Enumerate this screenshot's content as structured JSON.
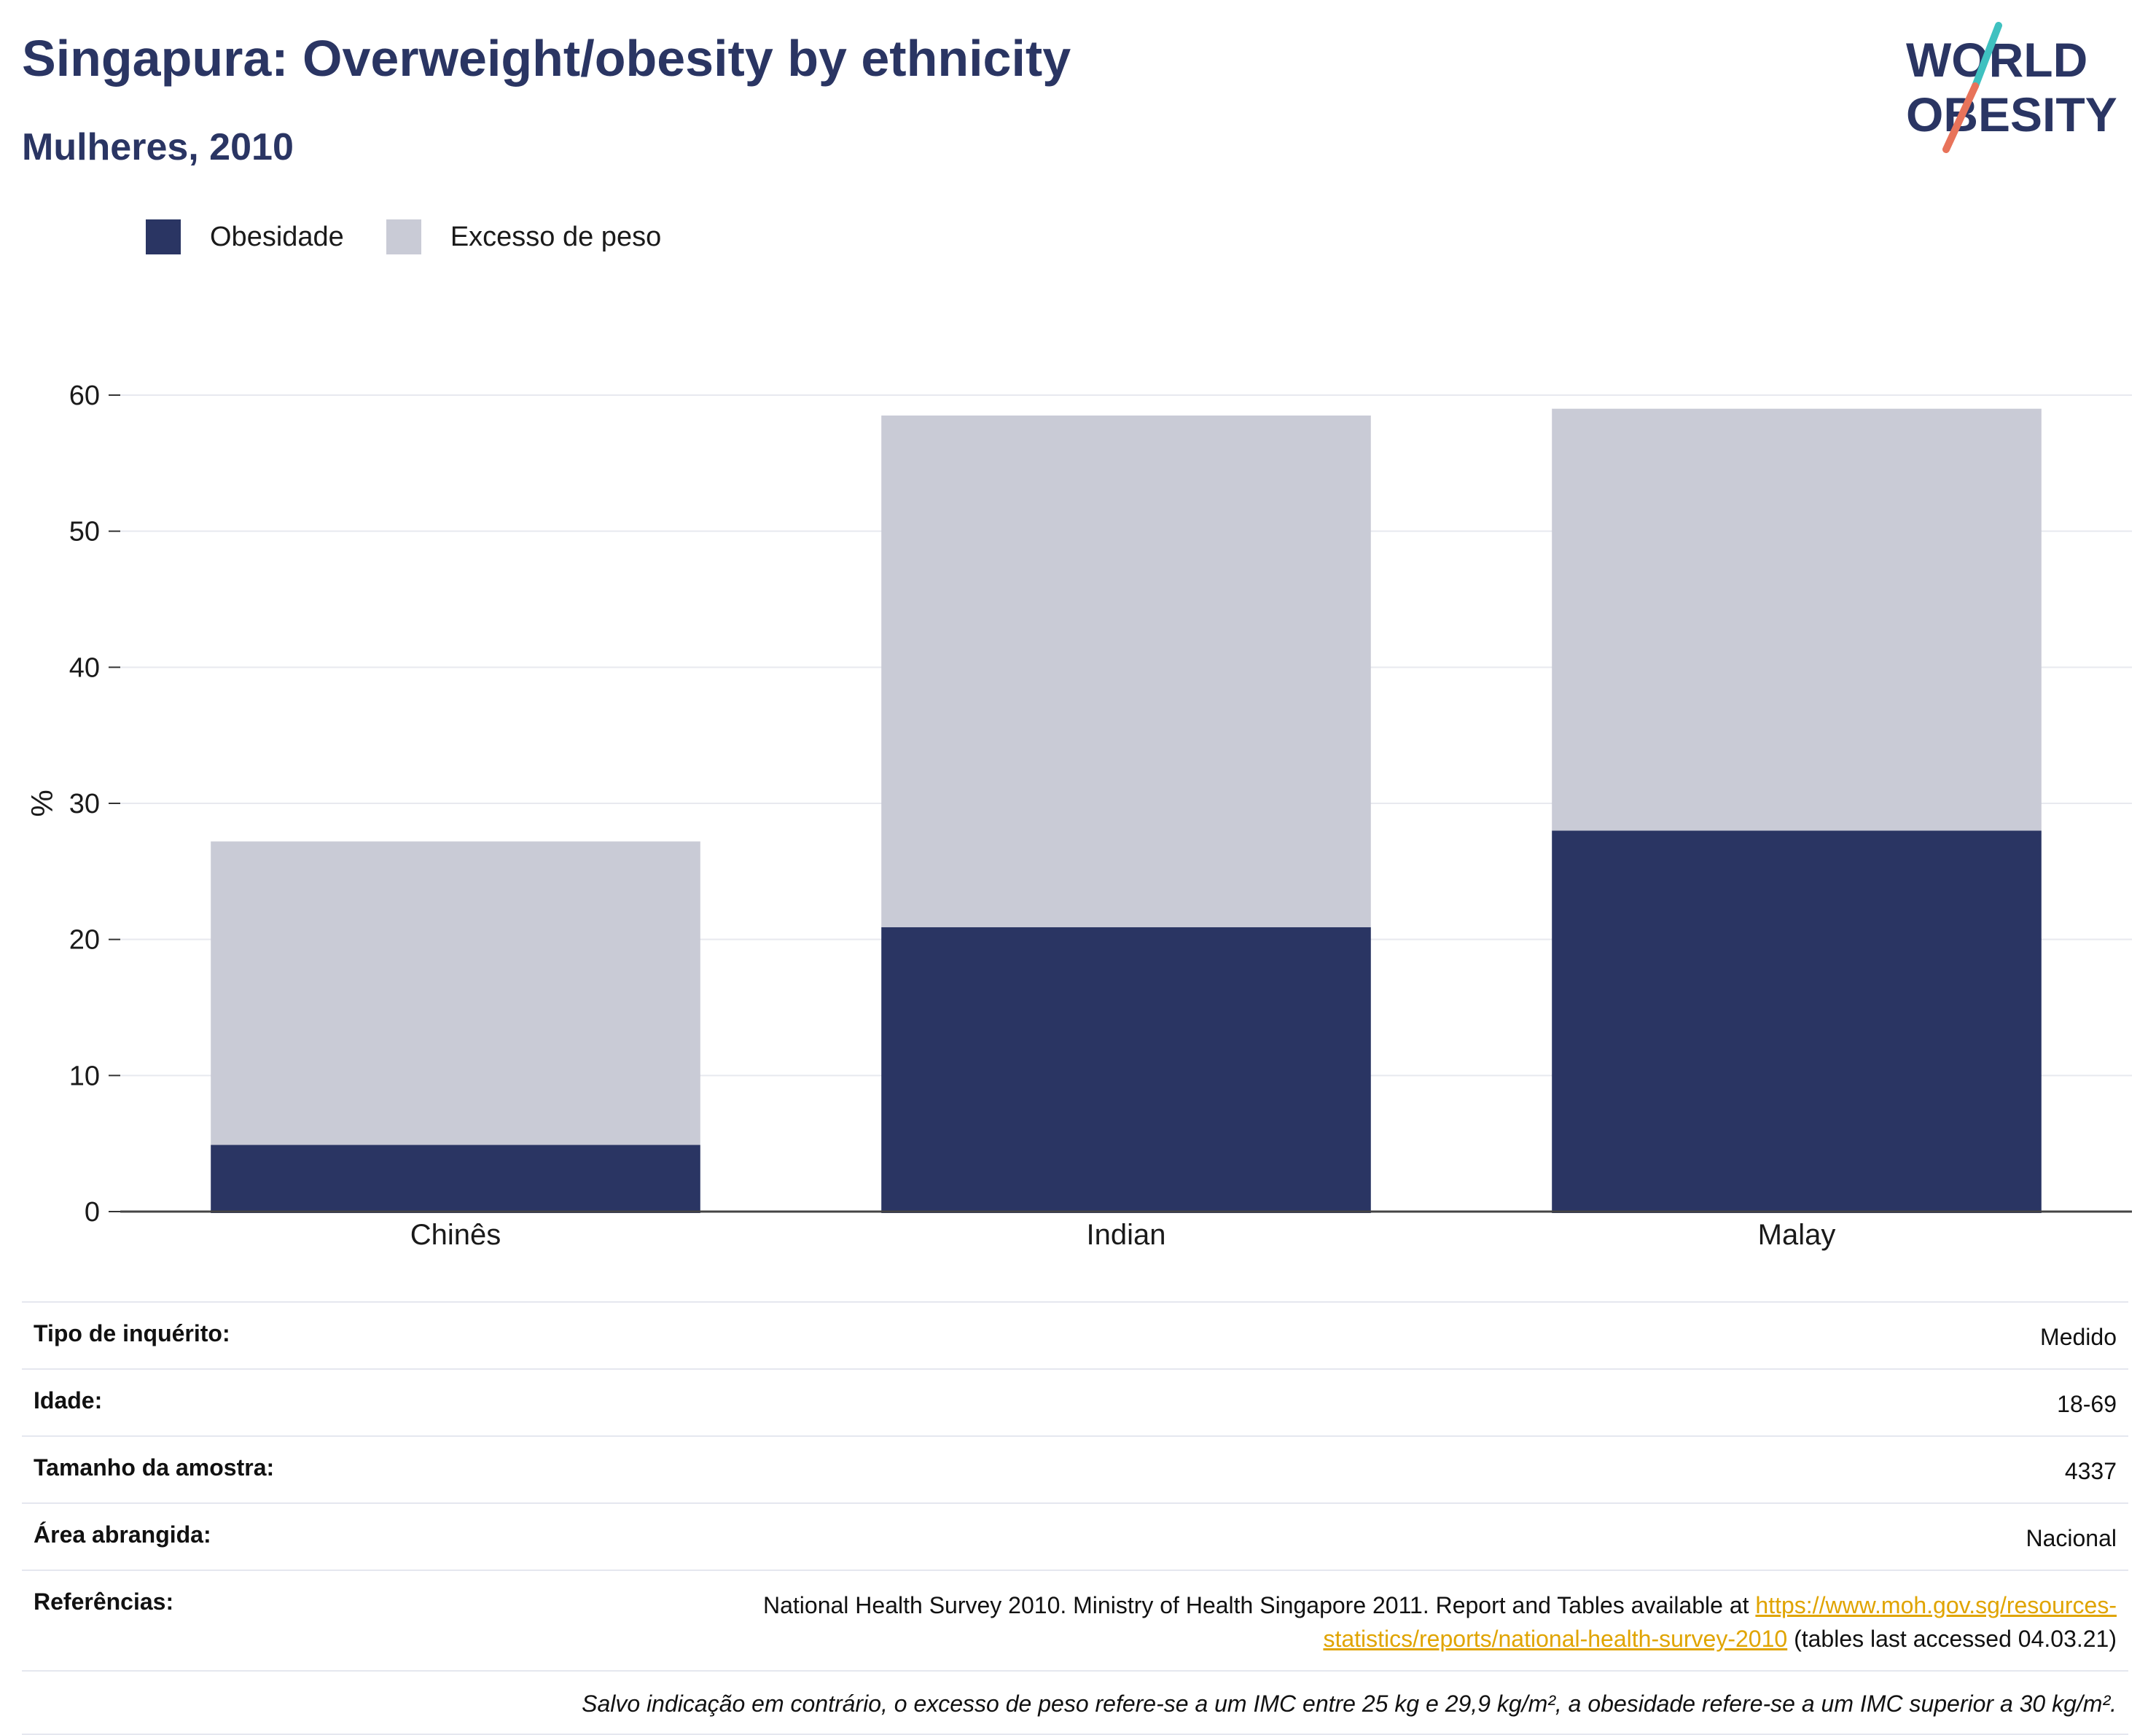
{
  "header": {
    "title": "Singapura: Overweight/obesity by ethnicity",
    "subtitle": "Mulheres, 2010"
  },
  "logo": {
    "text_line1": "WORLD",
    "text_line2": "OBESITY",
    "colors": {
      "text": "#2a3563",
      "slash_top": "#3fc1c0",
      "slash_bottom": "#e8735a"
    }
  },
  "legend": {
    "items": [
      {
        "label": "Obesidade",
        "color": "#2a3563"
      },
      {
        "label": "Excesso de peso",
        "color": "#c9cbd6"
      }
    ]
  },
  "chart_data": {
    "type": "bar",
    "stacked": true,
    "title": "",
    "xlabel": "",
    "ylabel": "%",
    "ylim": [
      0,
      60
    ],
    "yticks": [
      0,
      10,
      20,
      30,
      40,
      50,
      60
    ],
    "grid": true,
    "legend_position": "top-left",
    "categories": [
      "Chinês",
      "Indian",
      "Malay"
    ],
    "series": [
      {
        "name": "Obesidade",
        "color": "#2a3563",
        "values": [
          4.9,
          20.9,
          28.0
        ]
      },
      {
        "name": "Excesso de peso",
        "color": "#c9cbd6",
        "values": [
          22.3,
          37.6,
          31.0
        ]
      }
    ]
  },
  "info": {
    "rows": [
      {
        "key": "Tipo de inquérito:",
        "value": "Medido"
      },
      {
        "key": "Idade:",
        "value": "18-69"
      },
      {
        "key": "Tamanho da amostra:",
        "value": "4337"
      },
      {
        "key": "Área abrangida:",
        "value": "Nacional"
      }
    ],
    "references": {
      "key": "Referências:",
      "text_before": "National Health Survey 2010. Ministry of Health Singapore 2011. Report and Tables available at ",
      "link": "https://www.moh.gov.sg/resources-statistics/reports/national-health-survey-2010",
      "text_after": " (tables last accessed 04.03.21)"
    },
    "note": "Salvo indicação em contrário, o excesso de peso refere-se a um IMC entre 25 kg e 29,9 kg/m², a obesidade refere-se a um IMC superior a 30 kg/m²."
  }
}
